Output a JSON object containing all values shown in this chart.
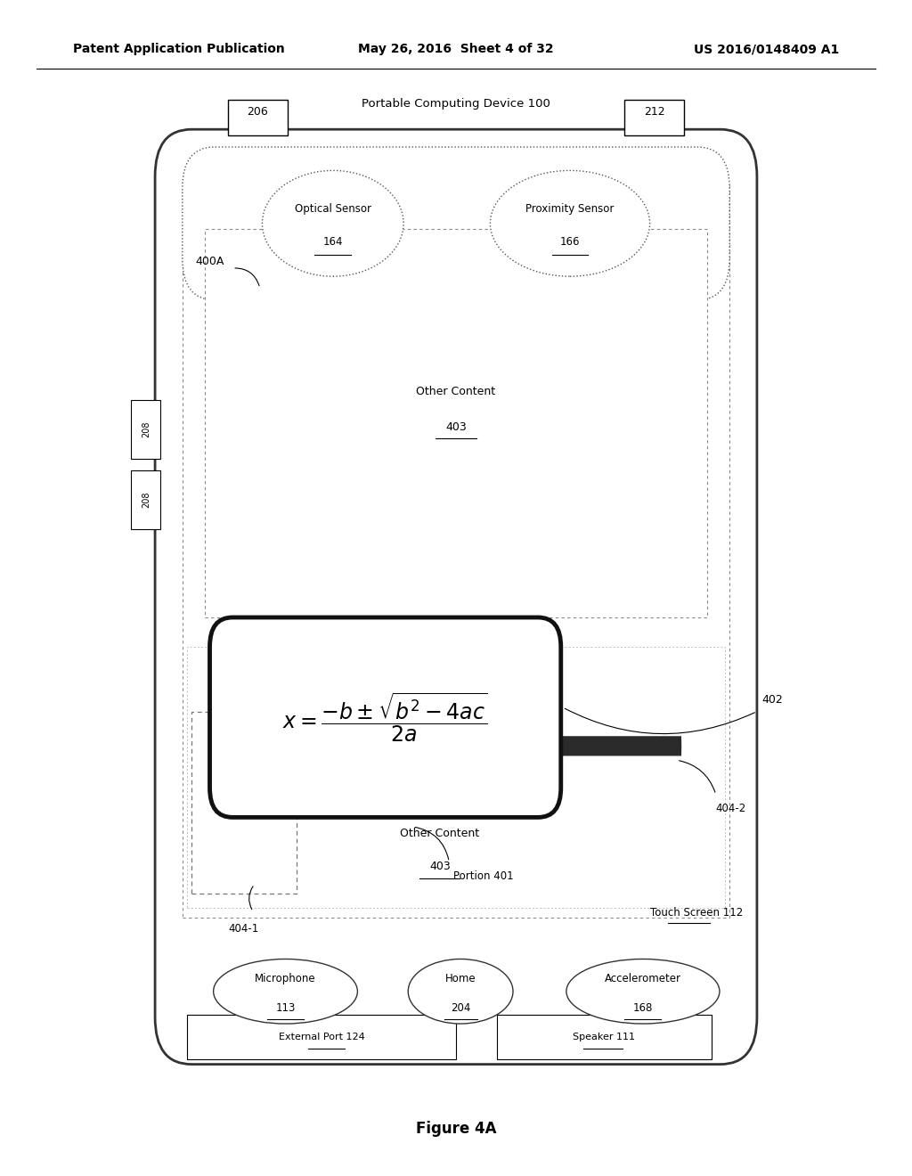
{
  "bg_color": "#ffffff",
  "header_left": "Patent Application Publication",
  "header_mid": "May 26, 2016  Sheet 4 of 32",
  "header_right": "US 2016/0148409 A1",
  "device_label": "Portable Computing Device 100",
  "figure_caption": "Figure 4A",
  "label_206": "206",
  "label_212": "212",
  "label_400A": "400A",
  "optical_sensor_label": "Optical Sensor",
  "optical_sensor_num": "164",
  "proximity_sensor_label": "Proximity Sensor",
  "proximity_sensor_num": "166",
  "microphone_label": "Microphone",
  "microphone_num": "113",
  "home_label": "Home",
  "home_num": "204",
  "accelerometer_label": "Accelerometer",
  "accelerometer_num": "168",
  "external_port_label": "External Port",
  "external_port_num": "124",
  "speaker_label": "Speaker",
  "speaker_num": "111",
  "touch_screen_label": "Touch Screen",
  "touch_screen_num": "112",
  "other_content_label": "Other Content",
  "other_content_num": "403",
  "portion_label": "Portion 401",
  "label_402": "402",
  "label_404_1": "404-1",
  "label_404_2": "404-2",
  "label_208": "208"
}
